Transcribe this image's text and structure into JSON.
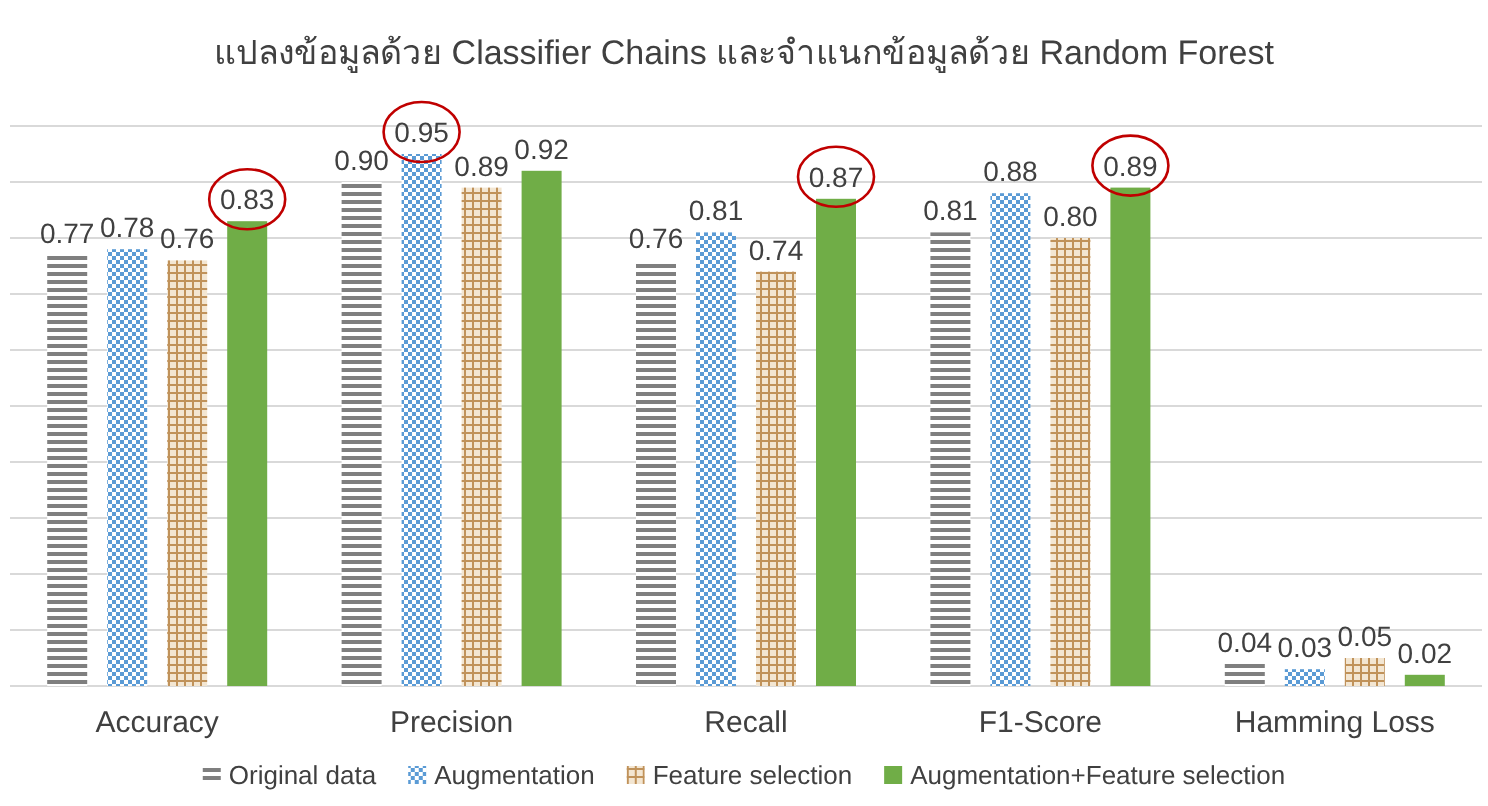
{
  "chart_data": {
    "type": "bar",
    "title": "แปลงข้อมูลด้วย Classifier Chains และจำแนกข้อมูลด้วย Random Forest",
    "categories": [
      "Accuracy",
      "Precision",
      "Recall",
      "F1-Score",
      "Hamming Loss"
    ],
    "series": [
      {
        "name": "Original data",
        "color": "#7f7f7f",
        "values": [
          0.77,
          0.9,
          0.76,
          0.81,
          0.04
        ],
        "value_labels": [
          "0.77",
          "0.90",
          "0.76",
          "0.81",
          "0.04"
        ]
      },
      {
        "name": "Augmentation",
        "color": "#5b9bd5",
        "values": [
          0.78,
          0.95,
          0.81,
          0.88,
          0.03
        ],
        "value_labels": [
          "0.78",
          "0.95",
          "0.81",
          "0.88",
          "0.03"
        ]
      },
      {
        "name": "Feature selection",
        "color": "#c0925a",
        "values": [
          0.76,
          0.89,
          0.74,
          0.8,
          0.05
        ],
        "value_labels": [
          "0.76",
          "0.89",
          "0.74",
          "0.80",
          "0.05"
        ]
      },
      {
        "name": "Augmentation+Feature selection",
        "color": "#70ad47",
        "values": [
          0.83,
          0.92,
          0.87,
          0.89,
          0.02
        ],
        "value_labels": [
          "0.83",
          "0.92",
          "0.87",
          "0.89",
          "0.02"
        ]
      }
    ],
    "ylim": [
      0,
      1
    ],
    "yticks": [
      {
        "value": 0.1,
        "label": null
      },
      {
        "value": 0.2,
        "label": null
      },
      {
        "value": 0.3,
        "label": null
      },
      {
        "value": 0.4,
        "label": null
      },
      {
        "value": 0.5,
        "label": null
      },
      {
        "value": 0.6,
        "label": null
      },
      {
        "value": 0.7,
        "label": null
      },
      {
        "value": 0.8,
        "label": null
      },
      {
        "value": 0.9,
        "label": null
      },
      {
        "value": 1,
        "label": null
      }
    ],
    "tick_labels": "x",
    "grid": "y",
    "legend": "bottom"
  }
}
